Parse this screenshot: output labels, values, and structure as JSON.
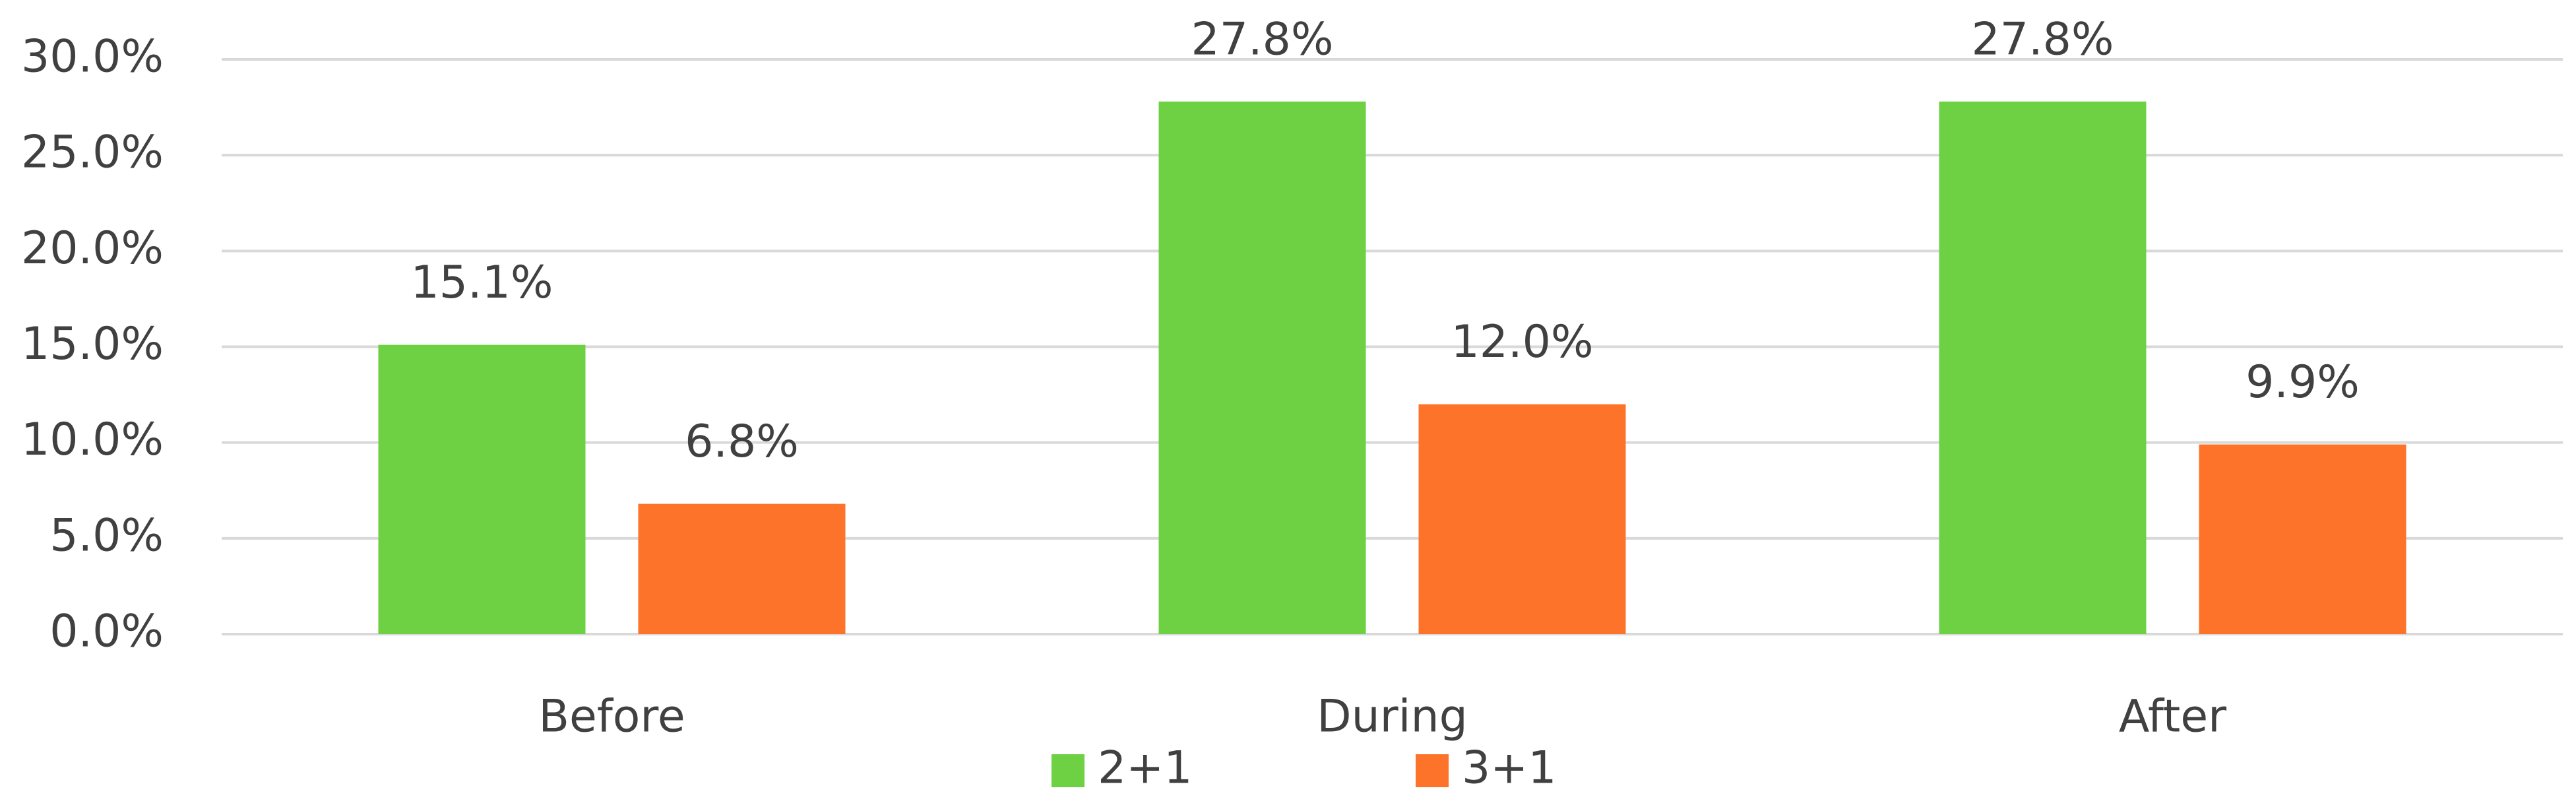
{
  "chart_data": {
    "type": "bar",
    "categories": [
      "Before",
      "During",
      "After"
    ],
    "series": [
      {
        "name": "2+1",
        "color": "#6dd143",
        "values": [
          15.1,
          27.8,
          27.8
        ],
        "value_labels": [
          "15.1%",
          "27.8%",
          "27.8%"
        ]
      },
      {
        "name": "3+1",
        "color": "#fd7329",
        "values": [
          6.8,
          12.0,
          9.9
        ],
        "value_labels": [
          "6.8%",
          "12.0%",
          "9.9%"
        ]
      }
    ],
    "ylim": [
      0,
      30
    ],
    "yticks": [
      {
        "value": 0,
        "label": "0.0%"
      },
      {
        "value": 5,
        "label": "5.0%"
      },
      {
        "value": 10,
        "label": "10.0%"
      },
      {
        "value": 15,
        "label": "15.0%"
      },
      {
        "value": 20,
        "label": "20.0%"
      },
      {
        "value": 25,
        "label": "25.0%"
      },
      {
        "value": 30,
        "label": "30.0%"
      }
    ],
    "grid": true,
    "legend": "bottom"
  }
}
